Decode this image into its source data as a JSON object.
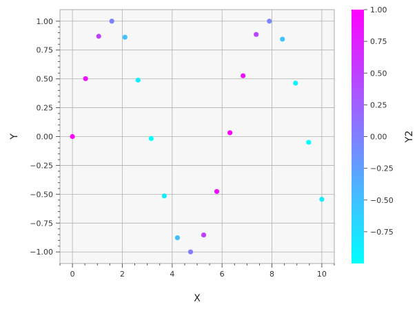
{
  "chart_data": {
    "type": "scatter",
    "title": "",
    "xlabel": "X",
    "ylabel": "Y",
    "colorbar_label": "Y2",
    "xlim": [
      -0.5,
      10.5
    ],
    "ylim": [
      -1.1,
      1.1
    ],
    "xticks": [
      0,
      2,
      4,
      6,
      8,
      10
    ],
    "yticks": [
      -1.0,
      -0.75,
      -0.5,
      -0.25,
      0.0,
      0.25,
      0.5,
      0.75,
      1.0
    ],
    "ytick_labels": [
      "−1.00",
      "−0.75",
      "−0.50",
      "−0.25",
      "0.00",
      "0.25",
      "0.50",
      "0.75",
      "1.00"
    ],
    "colorbar_range": [
      -1.0,
      1.0
    ],
    "colorbar_ticks": [
      -0.75,
      -0.5,
      -0.25,
      0.0,
      0.25,
      0.5,
      0.75,
      1.0
    ],
    "colorbar_tick_labels": [
      "−0.75",
      "−0.50",
      "−0.25",
      "0.00",
      "0.25",
      "0.50",
      "0.75",
      "1.00"
    ],
    "colormap": "cool",
    "colormap_low": "#00ffff",
    "colormap_high": "#ff00ff",
    "grid": true,
    "plot_background": "#f7f7f7",
    "grid_color": "#b0b0b0",
    "x": [
      0.0,
      0.526,
      1.053,
      1.579,
      2.105,
      2.632,
      3.158,
      3.684,
      4.211,
      4.737,
      5.263,
      5.789,
      6.316,
      6.842,
      7.368,
      7.895,
      8.421,
      8.947,
      9.474,
      10.0
    ],
    "y": [
      0.0,
      0.502,
      0.869,
      1.0,
      0.861,
      0.489,
      -0.017,
      -0.515,
      -0.877,
      -1.0,
      -0.853,
      -0.476,
      0.033,
      0.527,
      0.885,
      1.0,
      0.844,
      0.463,
      -0.05,
      -0.544
    ],
    "color": [
      1.0,
      0.865,
      0.496,
      -0.008,
      -0.508,
      -0.872,
      -1.0,
      -0.857,
      -0.482,
      0.025,
      0.521,
      0.881,
      0.999,
      0.848,
      0.466,
      -0.041,
      -0.534,
      -0.889,
      -0.999,
      -0.839
    ]
  }
}
